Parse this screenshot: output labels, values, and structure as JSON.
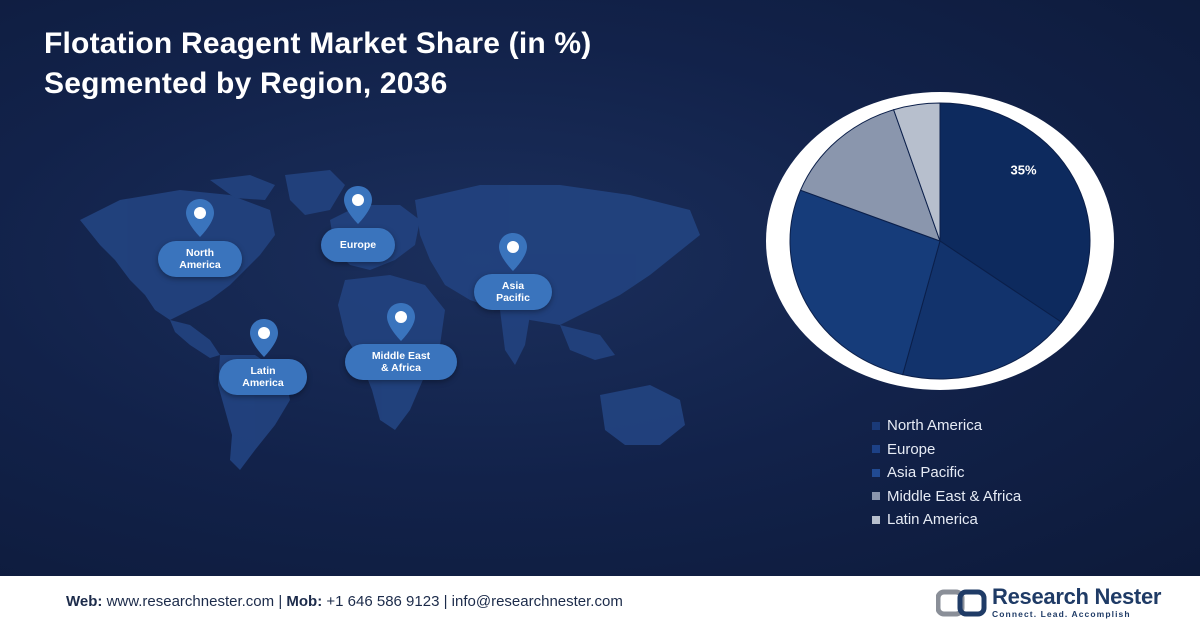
{
  "title": {
    "line1": "Flotation Reagent Market Share (in %)",
    "line2": "Segmented by Region, 2036"
  },
  "map": {
    "regions": [
      {
        "label": "North\nAmerica",
        "icon": "location-pin-icon"
      },
      {
        "label": "Europe",
        "icon": "location-pin-icon"
      },
      {
        "label": "Asia\nPacific",
        "icon": "location-pin-icon"
      },
      {
        "label": "Latin\nAmerica",
        "icon": "location-pin-icon"
      },
      {
        "label": "Middle East\n& Africa",
        "icon": "location-pin-icon"
      }
    ]
  },
  "chart_data": {
    "type": "pie",
    "title": "Flotation Reagent Market Share (in %) Segmented by Region, 2036",
    "slices": [
      {
        "name": "North America",
        "value": 35,
        "color": "#0d2a5e",
        "label": "35%"
      },
      {
        "name": "Europe",
        "value": 19,
        "color": "#12336c",
        "label": ""
      },
      {
        "name": "Asia Pacific",
        "value": 27,
        "color": "#163c7a",
        "label": ""
      },
      {
        "name": "Middle East & Africa",
        "value": 14,
        "color": "#8a96ad",
        "label": ""
      },
      {
        "name": "Latin America",
        "value": 5,
        "color": "#b7bfcd",
        "label": ""
      }
    ],
    "legend_placement": "bottom"
  },
  "footer": {
    "web_label": "Web:",
    "web_value": "www.researchnester.com",
    "mob_label": "Mob:",
    "mob_value": "+1 646 586 9123",
    "email": "info@researchnester.com",
    "separator": "|"
  },
  "logo": {
    "name": "Research Nester",
    "tagline": "Connect. Lead. Accomplish",
    "icon": "research-nester-logo-icon"
  }
}
